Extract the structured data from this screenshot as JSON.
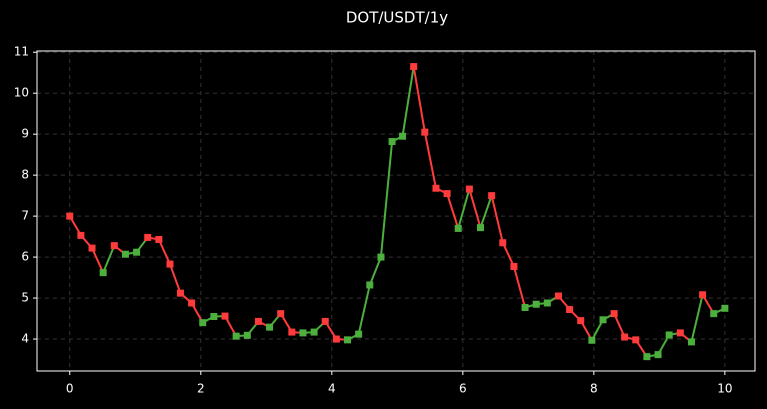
{
  "chart_data": {
    "type": "line",
    "title": "DOT/USDT/1y",
    "x": [
      0,
      0.17,
      0.34,
      0.51,
      0.68,
      0.85,
      1.02,
      1.19,
      1.36,
      1.53,
      1.69,
      1.86,
      2.03,
      2.2,
      2.37,
      2.54,
      2.71,
      2.88,
      3.05,
      3.22,
      3.39,
      3.56,
      3.73,
      3.9,
      4.07,
      4.24,
      4.41,
      4.58,
      4.75,
      4.92,
      5.08,
      5.25,
      5.42,
      5.59,
      5.76,
      5.93,
      6.1,
      6.27,
      6.44,
      6.61,
      6.78,
      6.95,
      7.12,
      7.29,
      7.46,
      7.63,
      7.8,
      7.97,
      8.14,
      8.31,
      8.47,
      8.64,
      8.81,
      8.98,
      9.15,
      9.32,
      9.49,
      9.66,
      9.83,
      10
    ],
    "values": [
      7.0,
      6.53,
      6.22,
      5.62,
      6.28,
      6.07,
      6.12,
      6.48,
      6.43,
      5.83,
      5.12,
      4.88,
      4.4,
      4.55,
      4.56,
      4.07,
      4.09,
      4.43,
      4.29,
      4.62,
      4.17,
      4.15,
      4.17,
      4.43,
      4.0,
      3.98,
      4.12,
      5.32,
      6.0,
      8.82,
      8.95,
      10.65,
      9.05,
      7.68,
      7.55,
      6.7,
      7.66,
      6.72,
      7.5,
      6.35,
      5.77,
      4.77,
      4.85,
      4.88,
      5.05,
      4.72,
      4.45,
      3.97,
      4.47,
      4.62,
      4.05,
      3.98,
      3.57,
      3.62,
      4.1,
      4.15,
      3.93,
      5.08,
      4.62,
      4.75
    ],
    "up_color": "#4caf3e",
    "down_color": "#ff3b3b",
    "xlim": [
      -0.5,
      10.46
    ],
    "xticks": [
      0,
      2,
      4,
      6,
      8,
      10
    ],
    "ylim": [
      3.22,
      11.03
    ],
    "yticks": [
      4,
      5,
      6,
      7,
      8,
      9,
      10,
      11
    ],
    "grid": true
  }
}
